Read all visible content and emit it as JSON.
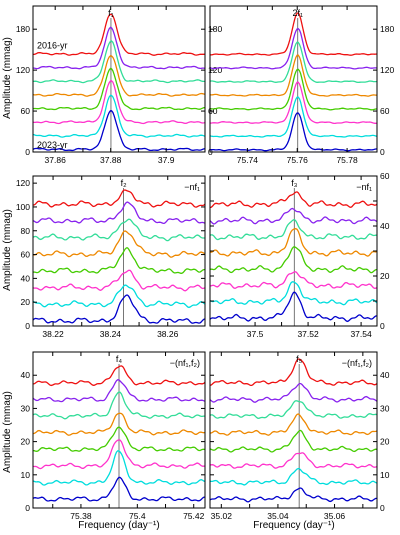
{
  "figure": {
    "xlabel": "Frequency (day⁻¹)",
    "ylabel": "Amplitude (mmag)",
    "series_colors": [
      "#0000cc",
      "#00dddd",
      "#ff33cc",
      "#44cc00",
      "#ee8800",
      "#33dd99",
      "#8822ee",
      "#ee1111"
    ],
    "year_top": "2016-yr",
    "year_bottom": "2023-yr"
  },
  "chart_data": [
    {
      "type": "line",
      "panel": "top-left",
      "peak_label": "f₁",
      "note": "",
      "xlim": [
        37.852,
        37.914
      ],
      "xticks": [
        37.86,
        37.87,
        37.88,
        37.89,
        37.9
      ],
      "xtick_labels": [
        "37.86",
        "",
        "37.88",
        "",
        "37.9"
      ],
      "ylim": [
        0,
        214
      ],
      "yticks": [
        0,
        60,
        120,
        180
      ],
      "ytick_side": "both",
      "mark_x": 37.8801,
      "peak_x": 37.8801,
      "peak_width": 0.0022,
      "offset_step": 20,
      "peak_amplitudes": [
        58,
        60,
        60,
        58,
        58,
        58,
        58,
        60
      ],
      "noise_level": 3,
      "show_year_labels": true
    },
    {
      "type": "line",
      "panel": "top-right",
      "peak_label": "2f₁",
      "note": "",
      "xlim": [
        75.725,
        75.792
      ],
      "xticks": [
        75.74,
        75.75,
        75.76,
        75.77,
        75.78
      ],
      "xtick_labels": [
        "75.74",
        "",
        "75.76",
        "",
        "75.78"
      ],
      "ylim": [
        0,
        214
      ],
      "yticks": [
        0,
        60,
        120,
        180
      ],
      "ytick_side": "right",
      "mark_x": 75.7602,
      "peak_x": 75.7602,
      "peak_width": 0.0022,
      "offset_step": 20,
      "peak_amplitudes": [
        54,
        58,
        60,
        58,
        58,
        58,
        58,
        60
      ],
      "noise_level": 2,
      "show_year_labels": false
    },
    {
      "type": "line",
      "panel": "middle-left",
      "peak_label": "f₂",
      "note": "−nf₁",
      "xlim": [
        38.213,
        38.273
      ],
      "xticks": [
        38.22,
        38.23,
        38.24,
        38.25,
        38.26
      ],
      "xtick_labels": [
        "38.22",
        "",
        "38.24",
        "",
        "38.26"
      ],
      "ylim": [
        0,
        126
      ],
      "yticks": [
        0,
        20,
        40,
        60,
        80,
        100,
        120
      ],
      "ytick_side": "left",
      "mark_x": 38.2446,
      "peak_x": 38.2458,
      "peak_width": 0.0026,
      "offset_step": 14,
      "peak_amplitudes": [
        20,
        16,
        14,
        18,
        20,
        16,
        14,
        10
      ],
      "noise_level": 4,
      "show_year_labels": false
    },
    {
      "type": "line",
      "panel": "middle-right",
      "peak_label": "f₃",
      "note": "−nf₁",
      "xlim": [
        37.483,
        37.546
      ],
      "xticks": [
        37.49,
        37.5,
        37.51,
        37.52,
        37.53,
        37.54
      ],
      "xtick_labels": [
        "",
        "37.5",
        "",
        "37.52",
        "",
        "37.54"
      ],
      "ylim": [
        0,
        60
      ],
      "yticks": [
        0,
        10,
        20,
        30,
        40,
        50,
        60
      ],
      "ytick_labels": [
        "0",
        "",
        "20",
        "",
        "40",
        "",
        "60"
      ],
      "ytick_side": "right",
      "mark_x": 37.5148,
      "peak_x": 37.5148,
      "peak_width": 0.0024,
      "offset_step": 6.5,
      "peak_amplitudes": [
        10,
        8,
        6,
        9,
        9,
        6,
        5,
        5
      ],
      "noise_level": 2,
      "show_year_labels": false
    },
    {
      "type": "line",
      "panel": "bottom-left",
      "peak_label": "f₄",
      "note": "−(nf₁,f₂)",
      "xlim": [
        75.363,
        75.424
      ],
      "xticks": [
        75.37,
        75.38,
        75.39,
        75.4,
        75.41,
        75.42
      ],
      "xtick_labels": [
        "",
        "75.38",
        "",
        "75.4",
        "",
        "75.42"
      ],
      "ylim": [
        0,
        47
      ],
      "yticks": [
        0,
        10,
        20,
        30,
        40
      ],
      "ytick_side": "left",
      "mark_x": 75.3935,
      "peak_x": 75.3935,
      "peak_width": 0.0022,
      "offset_step": 5,
      "peak_amplitudes": [
        6,
        9,
        8,
        7,
        6,
        7,
        6,
        5
      ],
      "noise_level": 1.2,
      "show_year_labels": false
    },
    {
      "type": "line",
      "panel": "bottom-right",
      "peak_label": "f₅",
      "note": "−(nf₁,f₂)",
      "xlim": [
        35.016,
        35.075
      ],
      "xticks": [
        35.02,
        35.03,
        35.04,
        35.05,
        35.06,
        35.07
      ],
      "xtick_labels": [
        "35.02",
        "",
        "35.04",
        "",
        "35.06",
        ""
      ],
      "ylim": [
        0,
        47
      ],
      "yticks": [
        0,
        10,
        20,
        30,
        40
      ],
      "ytick_side": "right",
      "mark_x": 35.0475,
      "peak_x": 35.0475,
      "peak_width": 0.0024,
      "offset_step": 5,
      "peak_amplitudes": [
        3,
        4,
        4,
        5,
        5,
        5,
        5,
        7
      ],
      "noise_level": 1.2,
      "show_year_labels": false
    }
  ]
}
